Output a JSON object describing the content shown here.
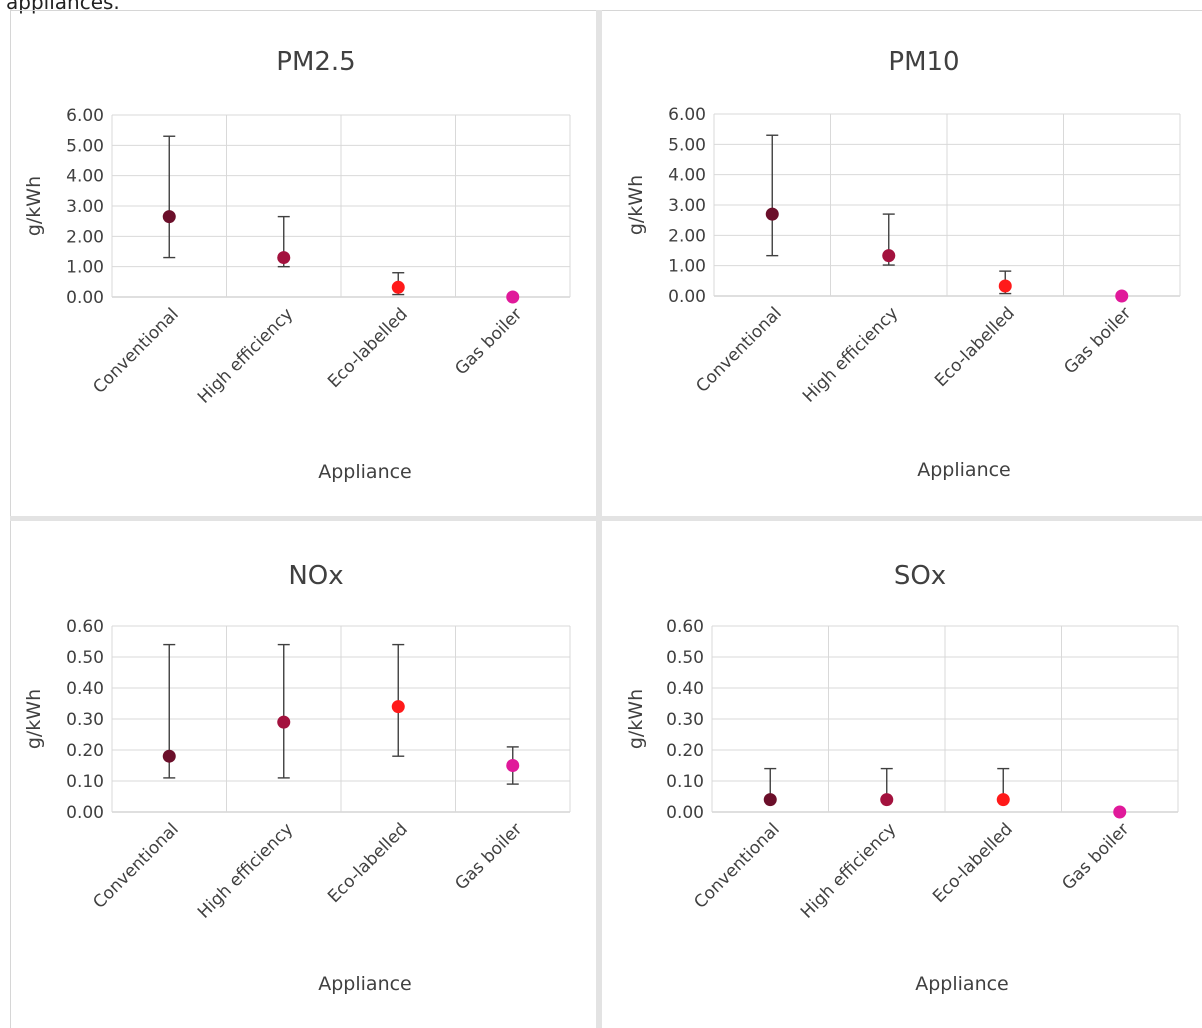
{
  "top_text": "appliances.",
  "chart_data": [
    {
      "type": "scatter",
      "title": "PM2.5",
      "xlabel": "Appliance",
      "ylabel": "g/kWh",
      "categories": [
        "Conventional",
        "High efficiency",
        "Eco-labelled",
        "Gas boiler"
      ],
      "ylim": [
        0,
        6
      ],
      "yticks": [
        "0.00",
        "1.00",
        "2.00",
        "3.00",
        "4.00",
        "5.00",
        "6.00"
      ],
      "values": [
        2.65,
        1.3,
        0.32,
        0.0
      ],
      "error_low": [
        1.3,
        1.0,
        0.08,
        null
      ],
      "error_high": [
        5.3,
        2.65,
        0.8,
        null
      ],
      "point_colors": [
        "#6b0f2a",
        "#a3123e",
        "#ff1a1a",
        "#e0199a"
      ],
      "grid": true
    },
    {
      "type": "scatter",
      "title": "PM10",
      "xlabel": "Appliance",
      "ylabel": "g/kWh",
      "categories": [
        "Conventional",
        "High efficiency",
        "Eco-labelled",
        "Gas boiler"
      ],
      "ylim": [
        0,
        6
      ],
      "yticks": [
        "0.00",
        "1.00",
        "2.00",
        "3.00",
        "4.00",
        "5.00",
        "6.00"
      ],
      "values": [
        2.7,
        1.33,
        0.33,
        0.0
      ],
      "error_low": [
        1.33,
        1.02,
        0.08,
        null
      ],
      "error_high": [
        5.3,
        2.7,
        0.82,
        null
      ],
      "point_colors": [
        "#6b0f2a",
        "#a3123e",
        "#ff1a1a",
        "#e0199a"
      ],
      "grid": true
    },
    {
      "type": "scatter",
      "title": "NOx",
      "xlabel": "Appliance",
      "ylabel": "g/kWh",
      "categories": [
        "Conventional",
        "High efficiency",
        "Eco-labelled",
        "Gas boiler"
      ],
      "ylim": [
        0,
        0.6
      ],
      "yticks": [
        "0.00",
        "0.10",
        "0.20",
        "0.30",
        "0.40",
        "0.50",
        "0.60"
      ],
      "values": [
        0.18,
        0.29,
        0.34,
        0.15
      ],
      "error_low": [
        0.11,
        0.11,
        0.18,
        0.09
      ],
      "error_high": [
        0.54,
        0.54,
        0.54,
        0.21
      ],
      "point_colors": [
        "#6b0f2a",
        "#a3123e",
        "#ff1a1a",
        "#e0199a"
      ],
      "grid": true
    },
    {
      "type": "scatter",
      "title": "SOx",
      "xlabel": "Appliance",
      "ylabel": "g/kWh",
      "categories": [
        "Conventional",
        "High efficiency",
        "Eco-labelled",
        "Gas boiler"
      ],
      "ylim": [
        0,
        0.6
      ],
      "yticks": [
        "0.00",
        "0.10",
        "0.20",
        "0.30",
        "0.40",
        "0.50",
        "0.60"
      ],
      "values": [
        0.04,
        0.04,
        0.04,
        0.0
      ],
      "error_low": [
        0.04,
        0.04,
        0.04,
        null
      ],
      "error_high": [
        0.14,
        0.14,
        0.14,
        null
      ],
      "point_colors": [
        "#6b0f2a",
        "#a3123e",
        "#ff1a1a",
        "#e0199a"
      ],
      "grid": true
    }
  ]
}
